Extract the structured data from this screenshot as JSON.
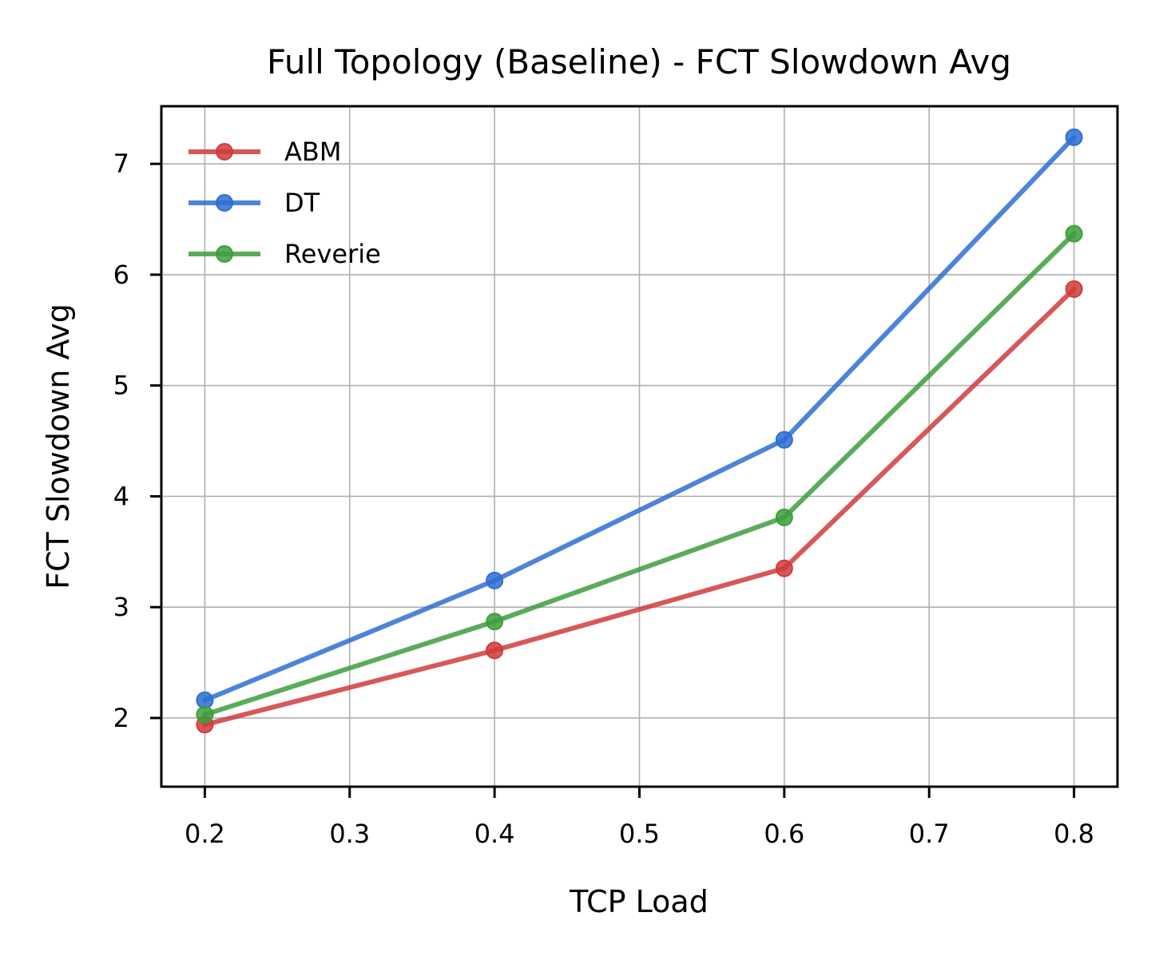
{
  "chart_data": {
    "type": "line",
    "title": "Full Topology (Baseline) - FCT Slowdown Avg",
    "xlabel": "TCP Load",
    "ylabel": "FCT Slowdown Avg",
    "x": [
      0.2,
      0.4,
      0.6,
      0.8
    ],
    "xlim": [
      0.17,
      0.83
    ],
    "ylim": [
      1.38,
      7.52
    ],
    "xticks": [
      "0.2",
      "0.3",
      "0.4",
      "0.5",
      "0.6",
      "0.7",
      "0.8"
    ],
    "yticks": [
      "2",
      "3",
      "4",
      "5",
      "6",
      "7"
    ],
    "grid": true,
    "legend_position": "top-left",
    "series": [
      {
        "name": "ABM",
        "color": "#d03b3b",
        "values": [
          1.94,
          2.61,
          3.35,
          5.87
        ]
      },
      {
        "name": "DT",
        "color": "#2d6fd2",
        "values": [
          2.16,
          3.24,
          4.51,
          7.24
        ]
      },
      {
        "name": "Reverie",
        "color": "#3d9e3d",
        "values": [
          2.03,
          2.87,
          3.81,
          6.37
        ]
      }
    ]
  }
}
